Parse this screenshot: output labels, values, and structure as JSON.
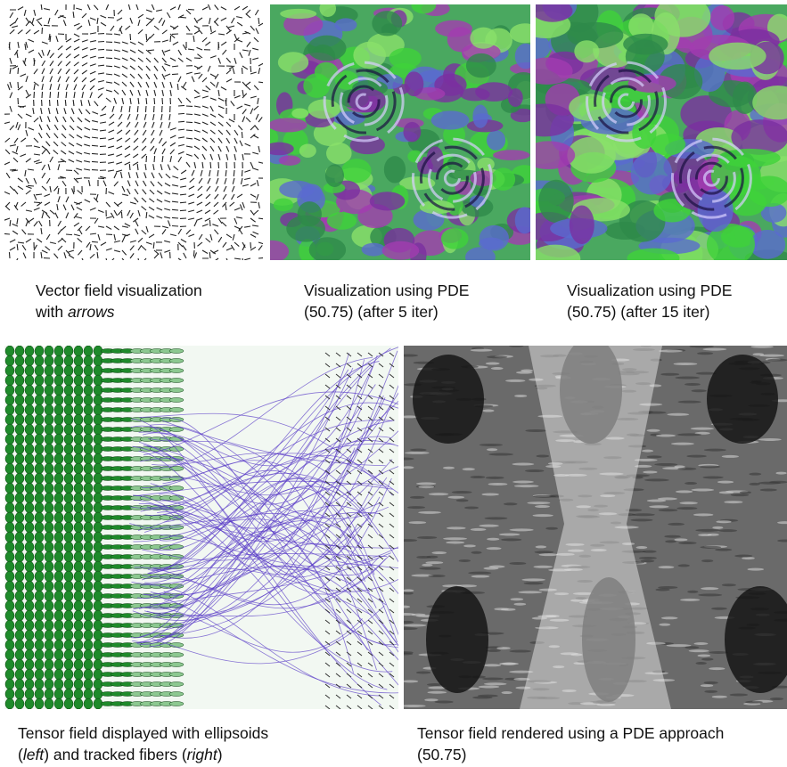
{
  "panels": [
    {
      "caption": [
        [
          "Vector field visualization"
        ],
        [
          "with ",
          "arrows"
        ]
      ]
    },
    {
      "caption": [
        [
          "Visualization using PDE"
        ],
        [
          "(50.75) (after 5 iter)"
        ]
      ]
    },
    {
      "caption": [
        [
          "Visualization using PDE"
        ],
        [
          "(50.75) (after 15 iter)"
        ]
      ]
    },
    {
      "caption": [
        [
          "Tensor field displayed with ellipsoids"
        ],
        [
          "(",
          "left",
          ") and tracked fibers (",
          "right",
          ")"
        ]
      ]
    },
    {
      "caption": [
        [
          "Tensor field rendered using a PDE approach"
        ],
        [
          "(50.75)"
        ]
      ]
    }
  ]
}
